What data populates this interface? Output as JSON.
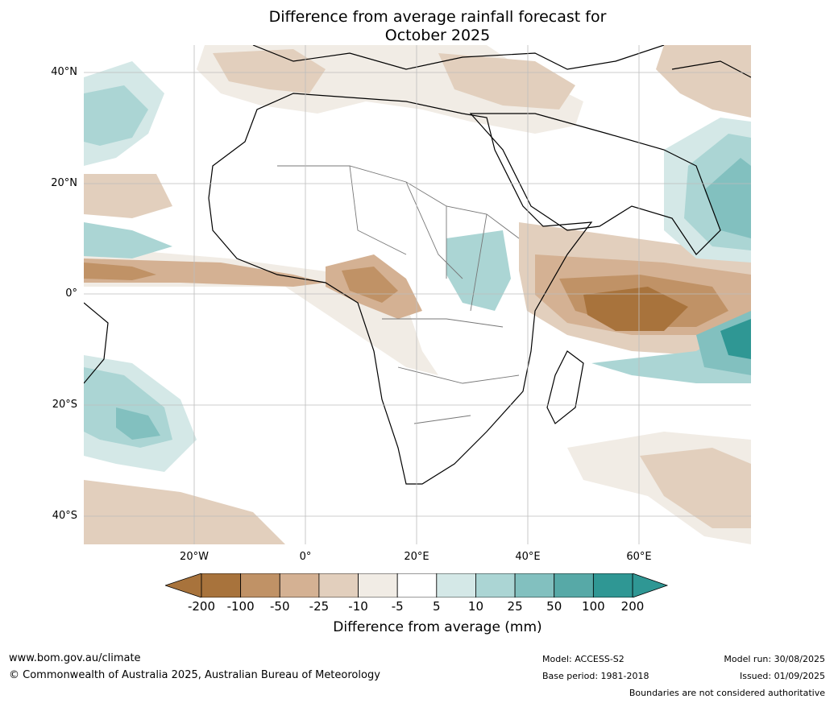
{
  "title_line1": "Difference from average rainfall forecast for",
  "title_line2": "October 2025",
  "lat_labels": [
    "40°N",
    "20°N",
    "0°",
    "20°S",
    "40°S"
  ],
  "lon_labels": [
    "20°W",
    "0°",
    "20°E",
    "40°E",
    "60°E"
  ],
  "colorbar": {
    "label": "Difference from average (mm)",
    "ticks": [
      "-200",
      "-100",
      "-50",
      "-25",
      "-10",
      "-5",
      "5",
      "10",
      "25",
      "50",
      "100",
      "200"
    ],
    "colors": [
      "#a8733c",
      "#c09266",
      "#d4b193",
      "#e2cfbd",
      "#f1ece5",
      "#ffffff",
      "#d4e8e7",
      "#abd5d4",
      "#82c0bf",
      "#57a9a7",
      "#2f9794"
    ],
    "under_color": "#a8733c",
    "over_color": "#2f9794"
  },
  "footer": {
    "url": "www.bom.gov.au/climate",
    "copyright": "© Commonwealth of Australia 2025, Australian Bureau of Meteorology",
    "model": "Model: ACCESS-S2",
    "base_period": "Base period: 1981-2018",
    "model_run": "Model run: 30/08/2025",
    "issued": "Issued: 01/09/2025",
    "disclaimer": "Boundaries are not considered authoritative"
  }
}
